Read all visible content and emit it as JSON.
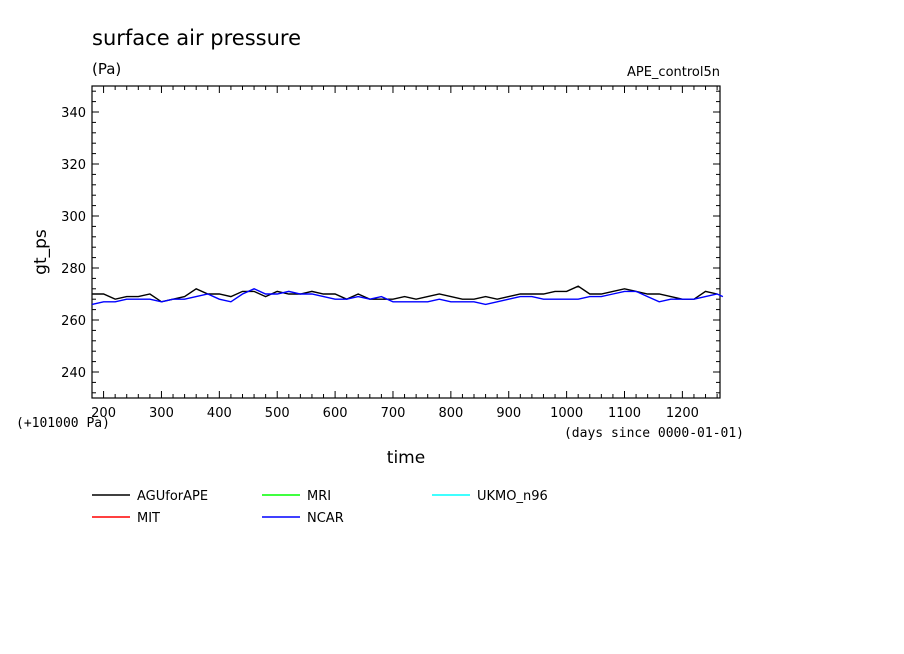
{
  "chart_data": {
    "type": "line",
    "title": "surface air pressure",
    "units": "(Pa)",
    "run_label": "APE_control5n",
    "xlabel": "time",
    "xunits": "(days since 0000-01-01)",
    "ylabel": "gt_ps",
    "yoffset_label": "(+101000 Pa)",
    "xlim": [
      180,
      1265
    ],
    "ylim": [
      230,
      350
    ],
    "xticks": [
      200,
      300,
      400,
      500,
      600,
      700,
      800,
      900,
      1000,
      1100,
      1200
    ],
    "yticks": [
      240,
      260,
      280,
      300,
      320,
      340
    ],
    "grid": false,
    "legend_position": "bottom",
    "series": [
      {
        "name": "AGUforAPE",
        "color": "#000000",
        "x": [
          180,
          200,
          220,
          240,
          260,
          280,
          300,
          320,
          340,
          360,
          380,
          400,
          420,
          440,
          460,
          480,
          500,
          520,
          540,
          560,
          580,
          600,
          620,
          640,
          660,
          680,
          700,
          720,
          740,
          760,
          780,
          800,
          820,
          840,
          860,
          880,
          900,
          920,
          940,
          960,
          980,
          1000,
          1020,
          1040,
          1060,
          1080,
          1100,
          1120,
          1140,
          1160,
          1180,
          1200,
          1220,
          1240,
          1260
        ],
        "values": [
          270,
          270,
          268,
          269,
          269,
          270,
          267,
          268,
          269,
          272,
          270,
          270,
          269,
          271,
          271,
          269,
          271,
          270,
          270,
          271,
          270,
          270,
          268,
          270,
          268,
          268,
          268,
          269,
          268,
          269,
          270,
          269,
          268,
          268,
          269,
          268,
          269,
          270,
          270,
          270,
          271,
          271,
          273,
          270,
          270,
          271,
          272,
          271,
          270,
          270,
          269,
          268,
          268,
          271,
          270
        ]
      },
      {
        "name": "MIT",
        "color": "#ff0000",
        "x": [],
        "values": []
      },
      {
        "name": "MRI",
        "color": "#00ff00",
        "x": [],
        "values": []
      },
      {
        "name": "NCAR",
        "color": "#0000ff",
        "x": [
          180,
          200,
          220,
          240,
          260,
          280,
          300,
          320,
          340,
          360,
          380,
          400,
          420,
          440,
          460,
          480,
          500,
          520,
          540,
          560,
          580,
          600,
          620,
          640,
          660,
          680,
          700,
          720,
          740,
          760,
          780,
          800,
          820,
          840,
          860,
          880,
          900,
          920,
          940,
          960,
          980,
          1000,
          1020,
          1040,
          1060,
          1080,
          1100,
          1120,
          1140,
          1160,
          1180,
          1200,
          1220,
          1240,
          1260,
          1270
        ],
        "values": [
          266,
          267,
          267,
          268,
          268,
          268,
          267,
          268,
          268,
          269,
          270,
          268,
          267,
          270,
          272,
          270,
          270,
          271,
          270,
          270,
          269,
          268,
          268,
          269,
          268,
          269,
          267,
          267,
          267,
          267,
          268,
          267,
          267,
          267,
          266,
          267,
          268,
          269,
          269,
          268,
          268,
          268,
          268,
          269,
          269,
          270,
          271,
          271,
          269,
          267,
          268,
          268,
          268,
          269,
          270,
          269
        ]
      },
      {
        "name": "UKMO_n96",
        "color": "#00ffff",
        "x": [],
        "values": []
      }
    ]
  }
}
